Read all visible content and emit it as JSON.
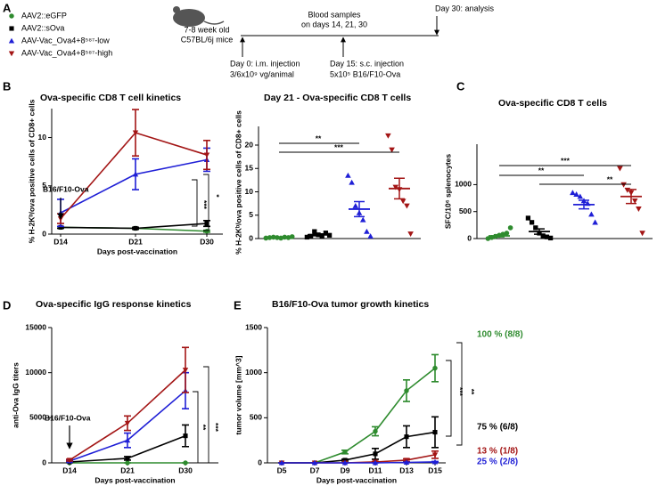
{
  "panel_labels": [
    "A",
    "B",
    "C",
    "D",
    "E"
  ],
  "legend": [
    {
      "label": "AAV2::eGFP",
      "color": "#2e8b2e",
      "marker": "circle"
    },
    {
      "label": "AAV2::sOva",
      "color": "#000000",
      "marker": "square"
    },
    {
      "label": "AAV-Vac_Ova4+8⁵⁸⁷-low",
      "color": "#1f1fd6",
      "marker": "triangle-up"
    },
    {
      "label": "AAV-Vac_Ova4+8⁵⁸⁷-high",
      "color": "#a31515",
      "marker": "triangle-down"
    }
  ],
  "timeline": {
    "mice": [
      "7-8 week old",
      "C57BL/6j mice"
    ],
    "blood": [
      "Blood samples",
      "on days 14, 21, 30"
    ],
    "analysis": "Day 30: analysis",
    "day0": [
      "Day 0: i.m. injection",
      "3/6x10⁹ vg/animal"
    ],
    "day15": [
      "Day 15: s.c. injection",
      "5x10⁵ B16/F10-Ova"
    ]
  },
  "chart_data": [
    {
      "type": "line",
      "title": "Ova-specific CD8 T cell kinetics",
      "xlabel": "Days post-vaccination",
      "ylabel": "% H-2Kᵇ/ova positive cells of CD8+ cells",
      "categories": [
        "D14",
        "D21",
        "D30"
      ],
      "ylim": [
        0,
        13
      ],
      "yticks": [
        0,
        5,
        10
      ],
      "series": [
        {
          "color": "#2e8b2e",
          "marker": "circle",
          "values": [
            0.7,
            0.6,
            0.3
          ],
          "errors": [
            0.1,
            0.1,
            0.1
          ]
        },
        {
          "color": "#000000",
          "marker": "square",
          "values": [
            0.7,
            0.6,
            1.1
          ],
          "errors": [
            0.1,
            0.1,
            0.3
          ]
        },
        {
          "color": "#1f1fd6",
          "marker": "triangle-up",
          "values": [
            2.2,
            6.2,
            7.7
          ],
          "errors": [
            1.4,
            1.6,
            1.2
          ]
        },
        {
          "color": "#a31515",
          "marker": "triangle-down",
          "values": [
            1.6,
            10.5,
            8.2
          ],
          "errors": [
            0.5,
            2.4,
            1.5
          ]
        }
      ],
      "annotations": [
        "B16/F10-Ova",
        "***",
        "*"
      ]
    },
    {
      "type": "dotplot",
      "title": "Day 21 - Ova-specific CD8 T cells",
      "ylabel": "% H-2Kᵇ/ova positive cells of CD8+ cells",
      "ylim": [
        0,
        24
      ],
      "yticks": [
        0,
        5,
        10,
        15,
        20
      ],
      "series": [
        {
          "color": "#2e8b2e",
          "marker": "circle",
          "values": [
            0.1,
            0.2,
            0.3,
            0.2,
            0.1,
            0.3,
            0.2,
            0.4
          ],
          "mean": 0.2,
          "error": 0.05
        },
        {
          "color": "#000000",
          "marker": "square",
          "values": [
            0.3,
            0.5,
            1.5,
            0.8,
            0.6,
            1.2,
            0.7
          ],
          "mean": 0.8,
          "error": 0.2
        },
        {
          "color": "#1f1fd6",
          "marker": "triangle-up",
          "values": [
            13.5,
            12,
            7,
            5.5,
            4,
            1.5,
            0.5
          ],
          "mean": 6.3,
          "error": 1.6
        },
        {
          "color": "#a31515",
          "marker": "triangle-down",
          "values": [
            22,
            19,
            11,
            10.5,
            8,
            7,
            1
          ],
          "mean": 10.7,
          "error": 2.2
        }
      ],
      "annotations": [
        "**",
        "***"
      ]
    },
    {
      "type": "dotplot",
      "title": "Ova-specific CD8 T cells",
      "ylabel": "SFC/10⁶ splenocytes",
      "ylim": [
        0,
        1750
      ],
      "yticks": [
        0,
        500,
        1000
      ],
      "series": [
        {
          "color": "#2e8b2e",
          "marker": "circle",
          "values": [
            0,
            20,
            40,
            60,
            80,
            100,
            200
          ],
          "mean": 50,
          "error": 20
        },
        {
          "color": "#000000",
          "marker": "square",
          "values": [
            380,
            300,
            200,
            100,
            50,
            30,
            10
          ],
          "mean": 130,
          "error": 50
        },
        {
          "color": "#1f1fd6",
          "marker": "triangle-up",
          "values": [
            850,
            820,
            780,
            700,
            650,
            450,
            300
          ],
          "mean": 630,
          "error": 80
        },
        {
          "color": "#a31515",
          "marker": "triangle-down",
          "values": [
            1300,
            1000,
            900,
            850,
            700,
            550,
            100
          ],
          "mean": 780,
          "error": 130
        }
      ],
      "annotations": [
        "***",
        "**",
        "**"
      ]
    },
    {
      "type": "line",
      "title": "Ova-specific IgG response kinetics",
      "xlabel": "Days post-vaccination",
      "ylabel": "anti-Ova IgG titers",
      "categories": [
        "D14",
        "D21",
        "D30"
      ],
      "ylim": [
        0,
        15000
      ],
      "yticks": [
        0,
        5000,
        10000,
        15000
      ],
      "series": [
        {
          "color": "#2e8b2e",
          "marker": "circle",
          "values": [
            0,
            0,
            0
          ],
          "errors": [
            0,
            0,
            0
          ]
        },
        {
          "color": "#000000",
          "marker": "square",
          "values": [
            100,
            500,
            3000
          ],
          "errors": [
            50,
            200,
            1200
          ]
        },
        {
          "color": "#1f1fd6",
          "marker": "triangle-up",
          "values": [
            200,
            2500,
            8000
          ],
          "errors": [
            100,
            800,
            2000
          ]
        },
        {
          "color": "#a31515",
          "marker": "triangle-down",
          "values": [
            300,
            4400,
            10300
          ],
          "errors": [
            100,
            800,
            2500
          ]
        }
      ],
      "annotations": [
        "B16/F10-Ova",
        "**",
        "***"
      ]
    },
    {
      "type": "line",
      "title": "B16/F10-Ova tumor growth kinetics",
      "xlabel": "Days post-vaccination",
      "ylabel": "tumor volume [mm^3]",
      "categories": [
        "D5",
        "D7",
        "D9",
        "D11",
        "D13",
        "D15"
      ],
      "ylim": [
        0,
        1500
      ],
      "yticks": [
        0,
        500,
        1000,
        1500
      ],
      "series": [
        {
          "color": "#2e8b2e",
          "marker": "circle",
          "values": [
            0,
            0,
            120,
            350,
            800,
            1050
          ],
          "errors": [
            0,
            0,
            20,
            50,
            120,
            150
          ]
        },
        {
          "color": "#000000",
          "marker": "square",
          "values": [
            0,
            0,
            30,
            100,
            290,
            340
          ],
          "errors": [
            0,
            0,
            10,
            60,
            120,
            170
          ]
        },
        {
          "color": "#a31515",
          "marker": "triangle-down",
          "values": [
            0,
            0,
            0,
            10,
            30,
            90
          ],
          "errors": [
            0,
            0,
            0,
            5,
            15,
            40
          ]
        },
        {
          "color": "#1f1fd6",
          "marker": "triangle-up",
          "values": [
            0,
            0,
            0,
            0,
            5,
            10
          ],
          "errors": [
            0,
            0,
            0,
            0,
            3,
            5
          ]
        }
      ],
      "annotations": [
        "***",
        "**"
      ],
      "outcomes": [
        {
          "text": "100 % (8/8)",
          "color": "#2e8b2e"
        },
        {
          "text": "75 % (6/8)",
          "color": "#000000"
        },
        {
          "text": "13 % (1/8)",
          "color": "#a31515"
        },
        {
          "text": "25 % (2/8)",
          "color": "#1f1fd6"
        }
      ]
    }
  ]
}
